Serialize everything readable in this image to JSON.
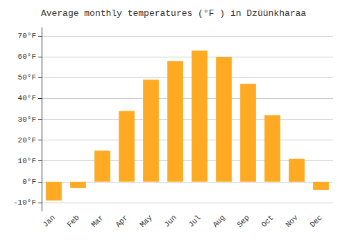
{
  "chart_data": {
    "type": "bar",
    "title": "Average monthly temperatures (°F ) in Dzüünkharaa",
    "categories": [
      "Jan",
      "Feb",
      "Mar",
      "Apr",
      "May",
      "Jun",
      "Jul",
      "Aug",
      "Sep",
      "Oct",
      "Nov",
      "Dec"
    ],
    "values": [
      -9,
      -3,
      15,
      34,
      49,
      58,
      63,
      60,
      47,
      32,
      11,
      -4
    ],
    "color": "#FFAA22",
    "ylim": [
      -14,
      74
    ],
    "yticks": [
      {
        "value": 70,
        "label": "70°F"
      },
      {
        "value": 60,
        "label": "60°F"
      },
      {
        "value": 50,
        "label": "50°F"
      },
      {
        "value": 40,
        "label": "40°F"
      },
      {
        "value": 30,
        "label": "30°F"
      },
      {
        "value": 20,
        "label": "20°F"
      },
      {
        "value": 10,
        "label": "10°F"
      },
      {
        "value": 0,
        "label": "0°F"
      },
      {
        "value": -10,
        "label": "-10°F"
      }
    ],
    "grid": true
  }
}
